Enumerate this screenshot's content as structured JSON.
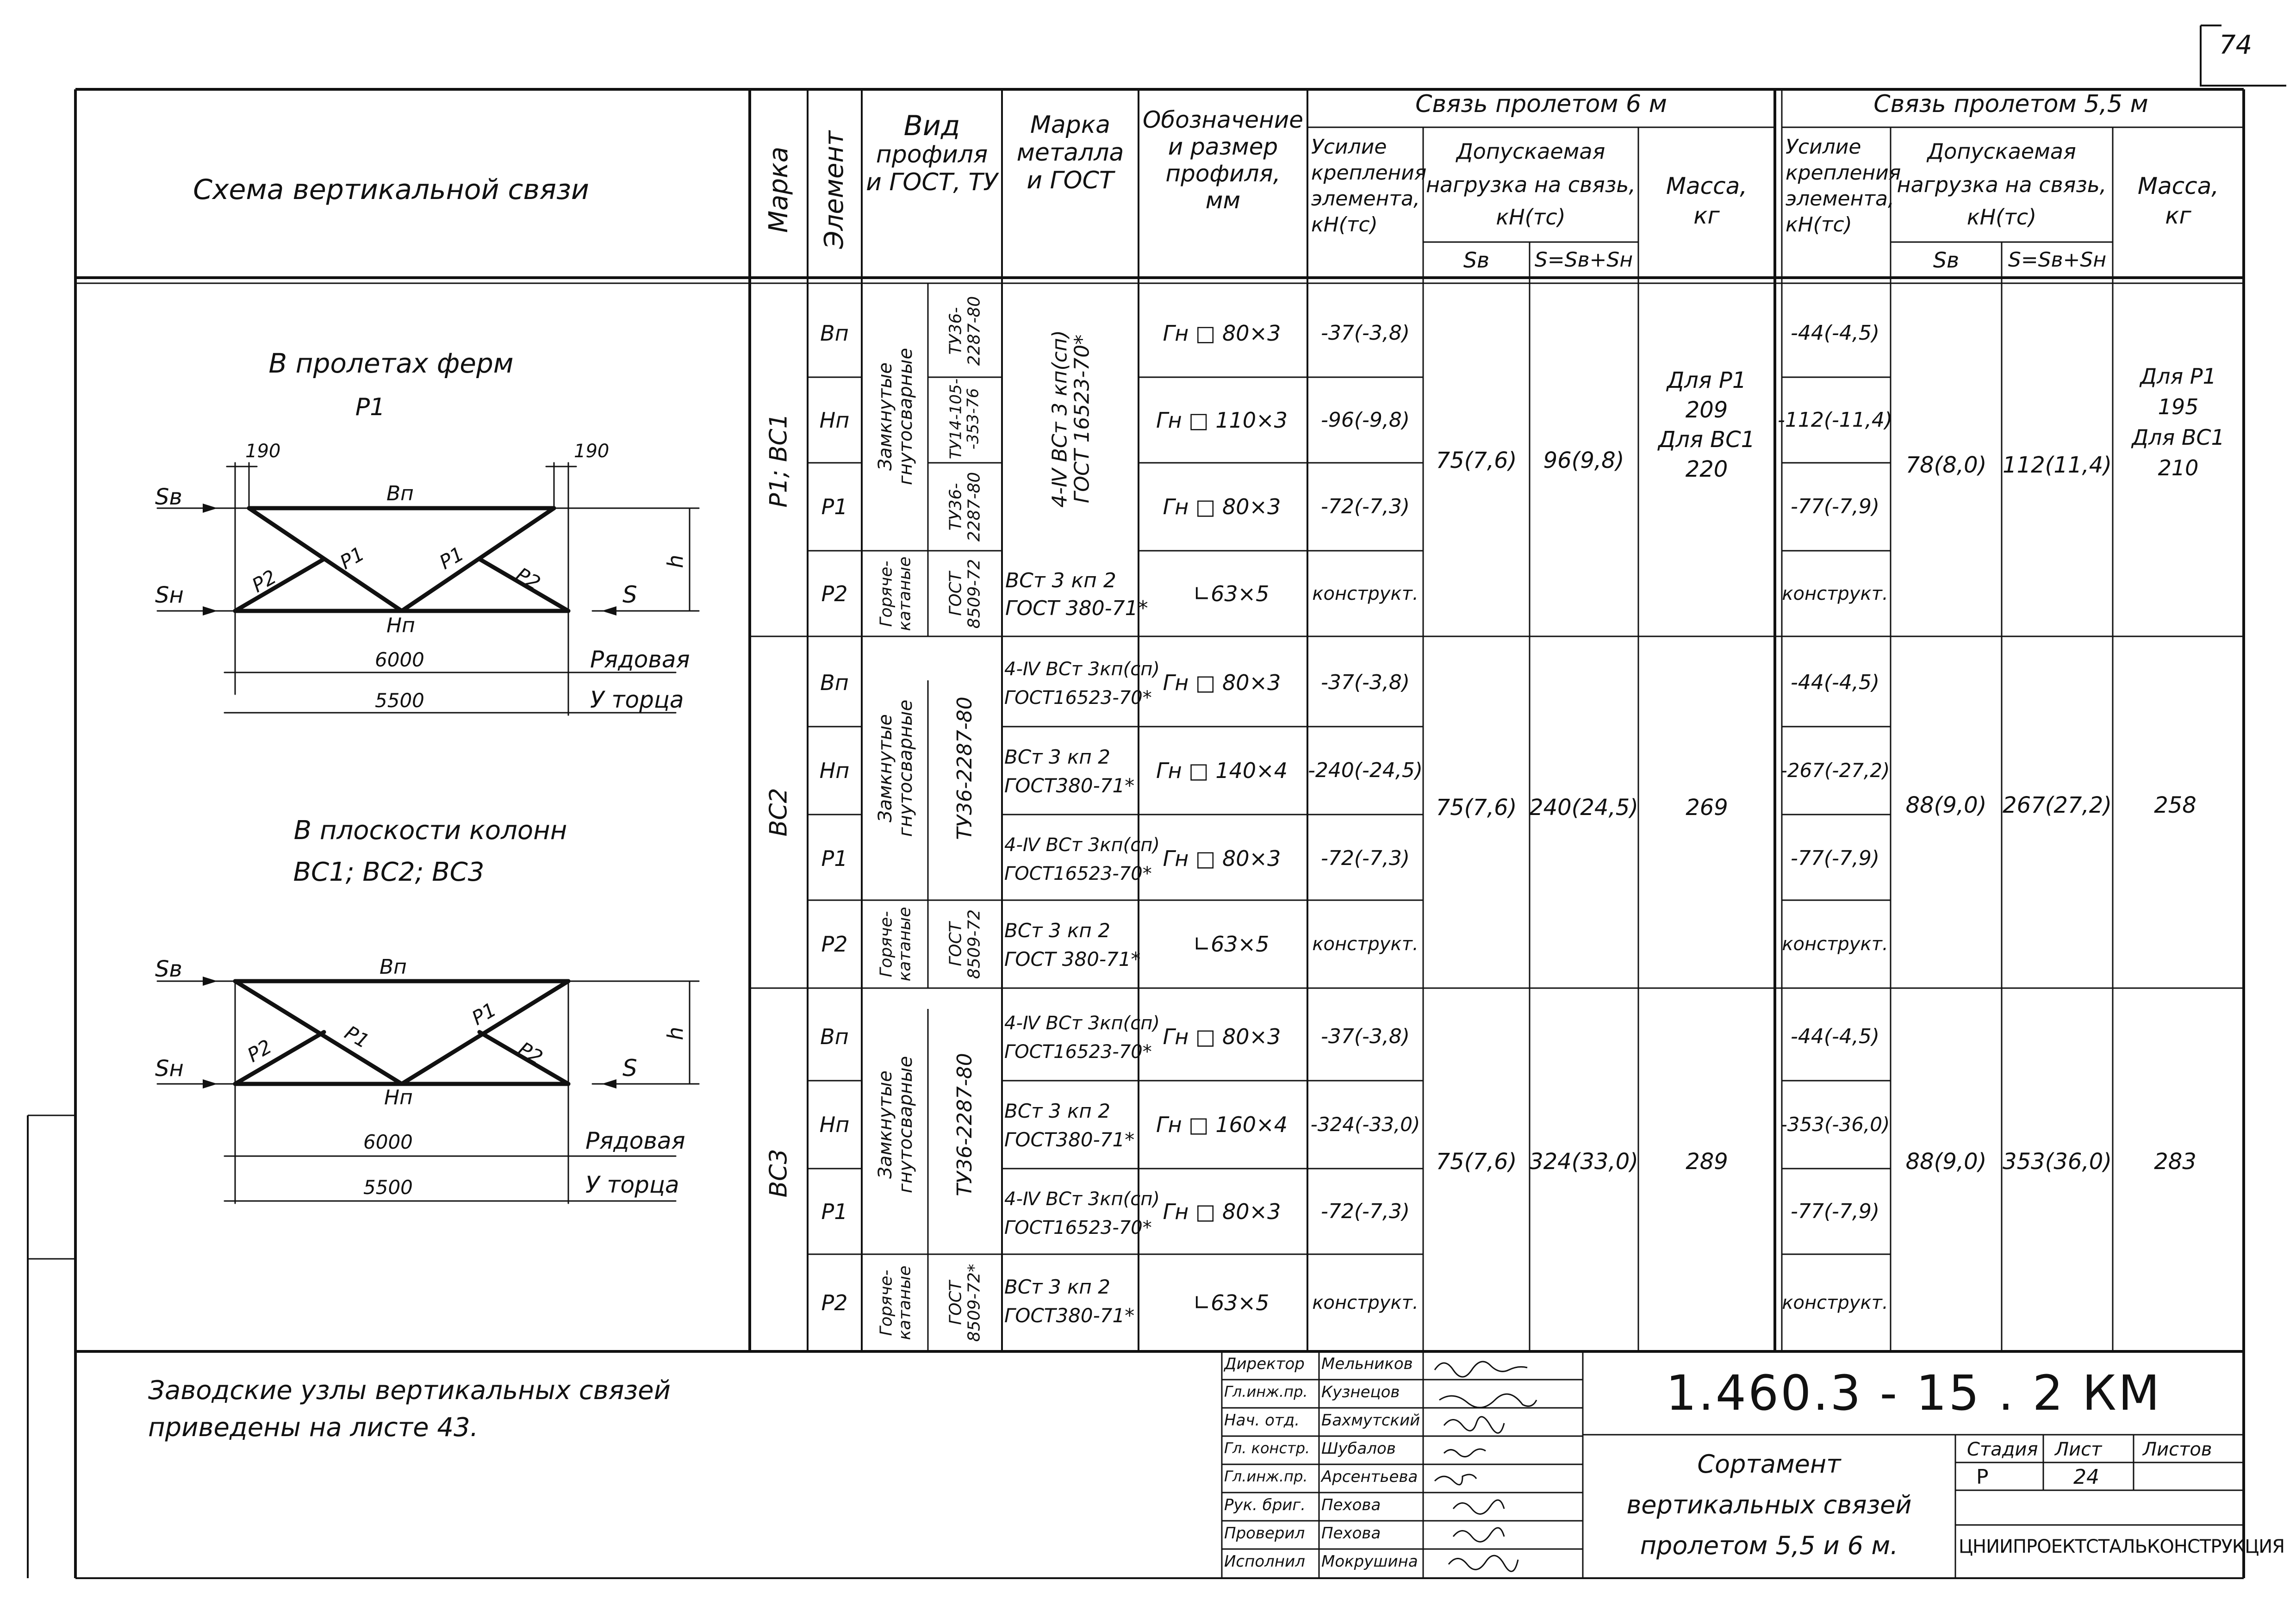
{
  "sheet_corner": "74",
  "header": {
    "schema": "Схема   вертикальной    связи",
    "marka": "Марка",
    "element": "Элемент",
    "vid_profilya": [
      "Вид",
      "профиля",
      "и ГОСТ, ТУ"
    ],
    "marka_metalla": [
      "Марка",
      "металла",
      "и ГОСТ"
    ],
    "oboznachenie": [
      "Обозначение",
      "и размер",
      "профиля,",
      "мм"
    ],
    "span6": "Связь    пролетом  6 м",
    "span55": "Связь    пролетом  5,5 м",
    "usilie": [
      "Усилие",
      "крепления",
      "элемента,",
      "кН(тс)"
    ],
    "dopusk": [
      "Допускаемая",
      "нагрузка  на  связь,",
      "кН(тс)"
    ],
    "massa": [
      "Масса,",
      "кг"
    ],
    "sb": "Sв",
    "ssum": "S=Sв+Sн"
  },
  "diagrams": {
    "d1_title": "В   пролетах    ферм",
    "d1_sub": "Р1",
    "d2_title": "В    плоскости   колонн",
    "d2_sub": "ВС1;  ВС2;  ВС3",
    "dim190": "190",
    "bn": "Вп",
    "hn": "Нп",
    "p1": "Р1",
    "p2": "Р2",
    "sb": "Sв",
    "sh": "Sн",
    "s": "S",
    "h": "h",
    "d6000": "6000",
    "d5500": "5500",
    "ryadovaya": "Рядовая",
    "u_torca": "У торца"
  },
  "groups": [
    {
      "marka": "Р1; ВС1",
      "rows": [
        {
          "el": "Вп",
          "profile": "Гн □ 80×3",
          "f6": "-37(-3,8)",
          "f55": "-44(-4,5)"
        },
        {
          "el": "Нп",
          "profile": "Гн □ 110×3",
          "f6": "-96(-9,8)",
          "f55": "-112(-11,4)"
        },
        {
          "el": "Р1",
          "profile": "Гн □ 80×3",
          "f6": "-72(-7,3)",
          "f55": "-77(-7,9)"
        },
        {
          "el": "Р2",
          "profile": "∟63×5",
          "f6": "конструкт.",
          "f55": "конструкт."
        }
      ],
      "vid_closed": [
        "Замкнутые",
        "гнутосварные"
      ],
      "vid_hot": [
        "Горяче-",
        "катаные"
      ],
      "tu": [
        [
          "ТУ36-",
          "2287-80"
        ],
        [
          "ТУ14-105-",
          "-353-76"
        ],
        [
          "ТУ36-",
          "2287-80"
        ]
      ],
      "gost_hot": [
        "ГОСТ",
        "8509-72"
      ],
      "metal_closed": [
        "4-Ⅳ ВСт 3 кп(сп)",
        "ГОСТ 16523-70*"
      ],
      "metal_hot": [
        "ВСт 3 кп 2",
        "ГОСТ 380-71*"
      ],
      "sb6": "75(7,6)",
      "ss6": "96(9,8)",
      "mass6": [
        "Для  Р1",
        "209",
        "Для  ВС1",
        "220"
      ],
      "sb55": "78(8,0)",
      "ss55": "112(11,4)",
      "mass55": [
        "Для Р1",
        "195",
        "Для  ВС1",
        "210"
      ]
    },
    {
      "marka": "ВС2",
      "rows": [
        {
          "el": "Вп",
          "profile": "Гн □ 80×3",
          "metal": [
            "4-Ⅳ ВСт 3кп(сп)",
            "ГОСТ16523-70*"
          ],
          "f6": "-37(-3,8)",
          "f55": "-44(-4,5)"
        },
        {
          "el": "Нп",
          "profile": "Гн □ 140×4",
          "metal": [
            "ВСт 3 кп 2",
            "ГОСТ380-71*"
          ],
          "f6": "-240(-24,5)",
          "f55": "-267(-27,2)"
        },
        {
          "el": "Р1",
          "profile": "Гн □ 80×3",
          "metal": [
            "4-Ⅳ ВСт 3кп(сп)",
            "ГОСТ16523-70*"
          ],
          "f6": "-72(-7,3)",
          "f55": "-77(-7,9)"
        },
        {
          "el": "Р2",
          "profile": "∟63×5",
          "metal": [
            "ВСт 3 кп 2",
            "ГОСТ 380-71*"
          ],
          "f6": "конструкт.",
          "f55": "конструкт."
        }
      ],
      "vid_closed": [
        "Замкнутые",
        "гнутосварные"
      ],
      "vid_hot": [
        "Горяче-",
        "катаные"
      ],
      "tu_closed": "ТУ36-2287-80",
      "gost_hot": [
        "ГОСТ",
        "8509-72"
      ],
      "sb6": "75(7,6)",
      "ss6": "240(24,5)",
      "mass6": "269",
      "sb55": "88(9,0)",
      "ss55": "267(27,2)",
      "mass55": "258"
    },
    {
      "marka": "ВС3",
      "rows": [
        {
          "el": "Вп",
          "profile": "Гн □ 80×3",
          "metal": [
            "4-Ⅳ ВСт 3кп(сп)",
            "ГОСТ16523-70*"
          ],
          "f6": "-37(-3,8)",
          "f55": "-44(-4,5)"
        },
        {
          "el": "Нп",
          "profile": "Гн □ 160×4",
          "metal": [
            "ВСт 3 кп 2",
            "ГОСТ380-71*"
          ],
          "f6": "-324(-33,0)",
          "f55": "-353(-36,0)"
        },
        {
          "el": "Р1",
          "profile": "Гн □ 80×3",
          "metal": [
            "4-Ⅳ ВСт 3кп(сп)",
            "ГОСТ16523-70*"
          ],
          "f6": "-72(-7,3)",
          "f55": "-77(-7,9)"
        },
        {
          "el": "Р2",
          "profile": "∟63×5",
          "metal": [
            "ВСт 3 кп 2",
            "ГОСТ380-71*"
          ],
          "f6": "конструкт.",
          "f55": "конструкт."
        }
      ],
      "vid_closed": [
        "Замкнутые",
        "гнутосварные"
      ],
      "vid_hot": [
        "Горяче-",
        "катаные"
      ],
      "tu_closed": "ТУ36-2287-80",
      "gost_hot": [
        "ГОСТ",
        "8509-72*"
      ],
      "sb6": "75(7,6)",
      "ss6": "324(33,0)",
      "mass6": "289",
      "sb55": "88(9,0)",
      "ss55": "353(36,0)",
      "mass55": "283"
    }
  ],
  "note": [
    "Заводские  узлы  вертикальных   связей",
    "приведены   на   листе  43."
  ],
  "title_block": {
    "code": "1.460.3 - 15 . 2 КМ",
    "signers": [
      {
        "role": "Директор",
        "name": "Мельников"
      },
      {
        "role": "Гл.инж.пр.",
        "name": "Кузнецов"
      },
      {
        "role": "Нач. отд.",
        "name": "Бахмутский"
      },
      {
        "role": "Гл. констр.",
        "name": "Шубалов"
      },
      {
        "role": "Гл.инж.пр.",
        "name": "Арсентьева"
      },
      {
        "role": "Рук. бриг.",
        "name": "Пехова"
      },
      {
        "role": "Проверил",
        "name": "Пехова"
      },
      {
        "role": "Исполнил",
        "name": "Мокрушина"
      }
    ],
    "title": [
      "Сортамент",
      "вертикальных   связей",
      "пролетом  5,5 и 6 м."
    ],
    "stadiya_label": "Стадия",
    "list_label": "Лист",
    "listov_label": "Листов",
    "stadiya": "Р",
    "list": "24",
    "org": "ЦНИИПРОЕКТСТАЛЬКОНСТРУКЦИЯ"
  }
}
